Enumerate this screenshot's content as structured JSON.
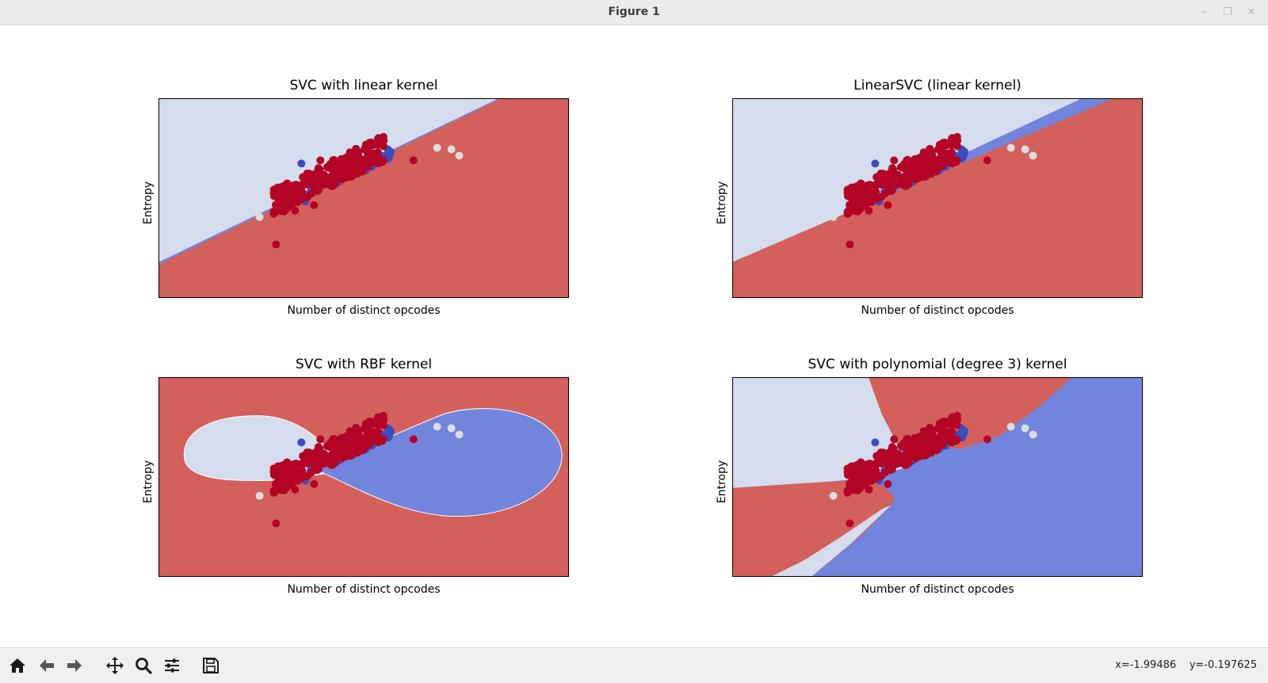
{
  "window": {
    "title": "Figure 1"
  },
  "toolbar": {
    "icons": [
      "home-icon",
      "back-arrow-icon",
      "forward-arrow-icon",
      "pan-icon",
      "zoom-icon",
      "configure-subplots-icon",
      "save-icon"
    ],
    "coords_x": "x=-1.99486",
    "coords_y": "y=-0.197625"
  },
  "colors": {
    "region_light": "#d5dcee",
    "region_red": "#d3605b",
    "region_blue": "#7285dd",
    "point_red": "#b40426",
    "point_blue": "#3b4cc0",
    "point_light": "#dddddd"
  },
  "chart_data": [
    {
      "type": "scatter",
      "title": "SVC with linear kernel",
      "xlabel": "Number of distinct opcodes",
      "ylabel": "Entropy",
      "grid": false,
      "ticks": false
    },
    {
      "type": "scatter",
      "title": "LinearSVC (linear kernel)",
      "xlabel": "Number of distinct opcodes",
      "ylabel": "Entropy",
      "grid": false,
      "ticks": false
    },
    {
      "type": "scatter",
      "title": "SVC with RBF kernel",
      "xlabel": "Number of distinct opcodes",
      "ylabel": "Entropy",
      "grid": false,
      "ticks": false
    },
    {
      "type": "scatter",
      "title": "SVC with polynomial (degree 3) kernel",
      "xlabel": "Number of distinct opcodes",
      "ylabel": "Entropy",
      "grid": false,
      "ticks": false
    }
  ]
}
